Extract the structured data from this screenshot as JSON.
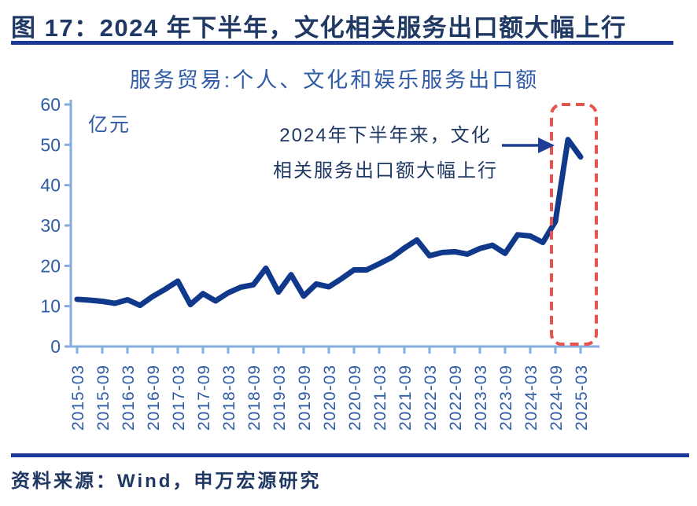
{
  "header": {
    "title": "图 17：2024 年下半年，文化相关服务出口额大幅上行"
  },
  "footer": {
    "source": "资料来源：Wind，申万宏源研究"
  },
  "chart_data": {
    "type": "line",
    "title": "服务贸易:个人、文化和娱乐服务出口额",
    "unit_label": "亿元",
    "series_name": "服务贸易:个人、文化和娱乐服务出口额",
    "x": [
      "2015-03",
      "2015-06",
      "2015-09",
      "2015-12",
      "2016-03",
      "2016-06",
      "2016-09",
      "2016-12",
      "2017-03",
      "2017-06",
      "2017-09",
      "2017-12",
      "2018-03",
      "2018-06",
      "2018-09",
      "2018-12",
      "2019-03",
      "2019-06",
      "2019-09",
      "2019-12",
      "2020-03",
      "2020-06",
      "2020-09",
      "2020-12",
      "2021-03",
      "2021-06",
      "2021-09",
      "2021-12",
      "2022-03",
      "2022-06",
      "2022-09",
      "2022-12",
      "2023-03",
      "2023-06",
      "2023-09",
      "2023-12",
      "2024-03",
      "2024-06",
      "2024-09",
      "2024-12",
      "2025-03"
    ],
    "values": [
      11.7,
      11.5,
      11.2,
      10.7,
      11.6,
      10.2,
      12.4,
      14.2,
      16.2,
      10.4,
      13.1,
      11.3,
      13.3,
      14.7,
      15.3,
      19.4,
      13.5,
      17.8,
      12.5,
      15.5,
      14.8,
      16.8,
      19.0,
      19.0,
      20.5,
      22.1,
      24.4,
      26.4,
      22.5,
      23.3,
      23.5,
      22.9,
      24.3,
      25.1,
      23.1,
      27.7,
      27.4,
      25.8,
      31.0,
      51.3,
      47.0
    ],
    "x_tick_labels": [
      "2015-03",
      "2015-09",
      "2016-03",
      "2016-09",
      "2017-03",
      "2017-09",
      "2018-03",
      "2018-09",
      "2019-03",
      "2019-09",
      "2020-03",
      "2020-09",
      "2021-03",
      "2021-09",
      "2022-03",
      "2022-09",
      "2023-03",
      "2023-09",
      "2024-03",
      "2024-09",
      "2025-03"
    ],
    "yticks": [
      0,
      10,
      20,
      30,
      40,
      50,
      60
    ],
    "ylim": [
      0,
      60
    ],
    "grid": "off",
    "legend": "none",
    "annotation": {
      "line1": "2024年下半年来，文化",
      "line2": "相关服务出口额大幅上行"
    },
    "highlight_range": {
      "from": "2024-09",
      "to": "2025-03"
    },
    "colors": {
      "line": "#10398C",
      "axis": "#85ABDE",
      "tick_text": "#2E5CA6",
      "chart_title_text": "#2F5BA7",
      "highlight_box": "#E8534E",
      "annotation_text": "#1F3864",
      "arrow": "#1D3E91",
      "header_text": "#1F3864",
      "rule": "#1B3799"
    }
  }
}
